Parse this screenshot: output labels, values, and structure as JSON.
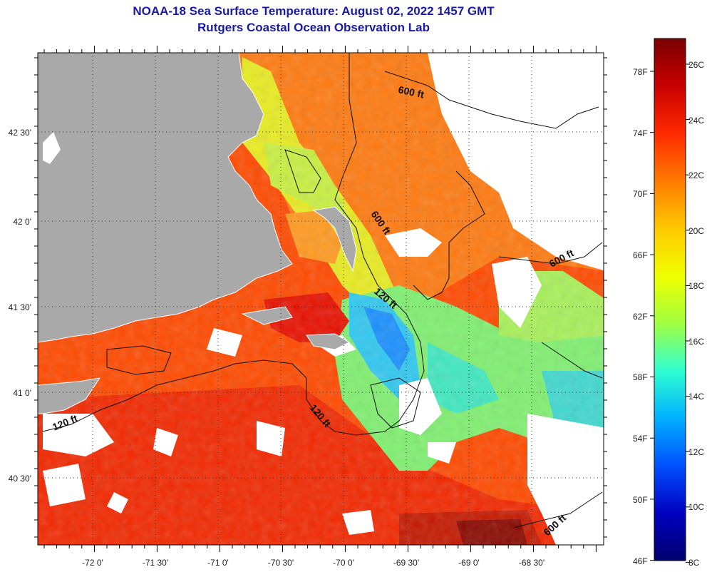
{
  "title": {
    "line1": "NOAA-18 Sea Surface Temperature:  August 02, 2022 1457 GMT",
    "line2": "Rutgers Coastal Ocean Observation Lab"
  },
  "map": {
    "lon_labels": [
      "-72 0'",
      "-71 30'",
      "-71 0'",
      "-70 30'",
      "-70 0'",
      "-69 30'",
      "-69 0'",
      "-68 30'"
    ],
    "lat_labels": [
      "42 30'",
      "42 0'",
      "41 30'",
      "41 0'",
      "40 30'"
    ],
    "contour_labels": [
      {
        "text": "600 ft",
        "id": "c600-north"
      },
      {
        "text": "600 ft",
        "id": "c600-mid"
      },
      {
        "text": "120 ft",
        "id": "c120-mid"
      },
      {
        "text": "600 ft",
        "id": "c600-east"
      },
      {
        "text": "120 ft",
        "id": "c120-west"
      },
      {
        "text": "120 ft",
        "id": "c120-south"
      },
      {
        "text": "600 ft",
        "id": "c600-southeast"
      }
    ],
    "colors": {
      "land": "#a9a9a9",
      "cloud": "#ffffff",
      "frame": "#000000"
    }
  },
  "colorbar": {
    "fahrenheit": [
      "78F",
      "74F",
      "70F",
      "66F",
      "62F",
      "58F",
      "54F",
      "50F",
      "46F"
    ],
    "celsius": [
      "26C",
      "24C",
      "22C",
      "20C",
      "18C",
      "16C",
      "14C",
      "12C",
      "10C",
      "8C"
    ],
    "gradient": [
      "#7a0000",
      "#c80000",
      "#ff2a00",
      "#ff7a00",
      "#ffc800",
      "#f0ff00",
      "#a0ff40",
      "#30ffd0",
      "#00b0ff",
      "#0050ff",
      "#0000c0",
      "#00006e"
    ]
  }
}
